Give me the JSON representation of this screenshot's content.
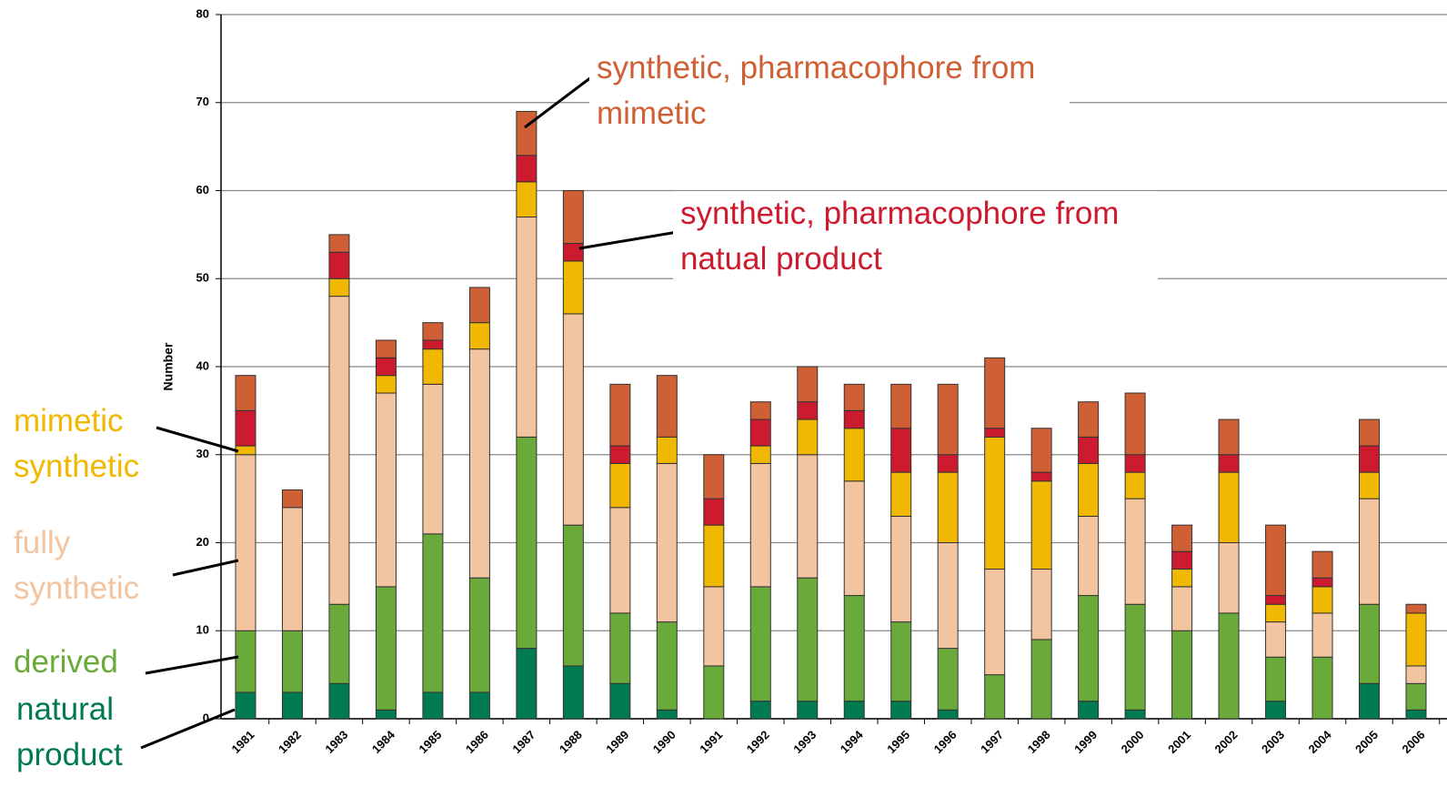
{
  "chart_data": {
    "type": "stacked_bar",
    "y_label": "Number",
    "categories": [
      "1981",
      "1982",
      "1983",
      "1984",
      "1985",
      "1986",
      "1987",
      "1988",
      "1989",
      "1990",
      "1991",
      "1992",
      "1993",
      "1994",
      "1995",
      "1996",
      "1997",
      "1998",
      "1999",
      "2000",
      "2001",
      "2002",
      "2003",
      "2004",
      "2005",
      "2006"
    ],
    "ylim": [
      0,
      80
    ],
    "yticks": [
      0,
      10,
      20,
      30,
      40,
      50,
      60,
      70,
      80
    ],
    "grid": true,
    "series": [
      {
        "name": "natural product",
        "color": "#007a50",
        "values": [
          3,
          3,
          4,
          1,
          3,
          3,
          8,
          6,
          4,
          1,
          0,
          2,
          2,
          2,
          2,
          1,
          0,
          0,
          2,
          1,
          0,
          0,
          2,
          0,
          4,
          1
        ]
      },
      {
        "name": "derived",
        "color": "#6aaa3a",
        "values": [
          7,
          7,
          9,
          14,
          18,
          13,
          24,
          16,
          8,
          10,
          6,
          13,
          14,
          12,
          9,
          7,
          5,
          9,
          12,
          12,
          10,
          12,
          5,
          7,
          9,
          3
        ]
      },
      {
        "name": "fully synthetic",
        "color": "#f2c4a0",
        "values": [
          20,
          14,
          35,
          22,
          17,
          26,
          25,
          24,
          12,
          18,
          9,
          14,
          14,
          13,
          12,
          12,
          12,
          8,
          9,
          12,
          5,
          8,
          4,
          5,
          12,
          2
        ]
      },
      {
        "name": "mimetic synthetic",
        "color": "#f0b800",
        "values": [
          1,
          0,
          2,
          2,
          4,
          3,
          4,
          6,
          5,
          3,
          7,
          2,
          4,
          6,
          5,
          8,
          15,
          10,
          6,
          3,
          2,
          8,
          2,
          3,
          3,
          6
        ]
      },
      {
        "name": "synthetic, pharmacophore from natual product",
        "color": "#cc1a2e",
        "values": [
          4,
          0,
          3,
          2,
          1,
          0,
          3,
          2,
          2,
          0,
          3,
          3,
          2,
          2,
          5,
          2,
          1,
          1,
          3,
          2,
          2,
          2,
          1,
          1,
          3,
          0
        ]
      },
      {
        "name": "synthetic, pharmacophore from mimetic",
        "color": "#cf5f35",
        "values": [
          4,
          2,
          2,
          2,
          2,
          4,
          5,
          6,
          7,
          7,
          5,
          2,
          4,
          3,
          5,
          8,
          8,
          5,
          4,
          7,
          3,
          4,
          8,
          3,
          3,
          1
        ]
      }
    ]
  }
}
